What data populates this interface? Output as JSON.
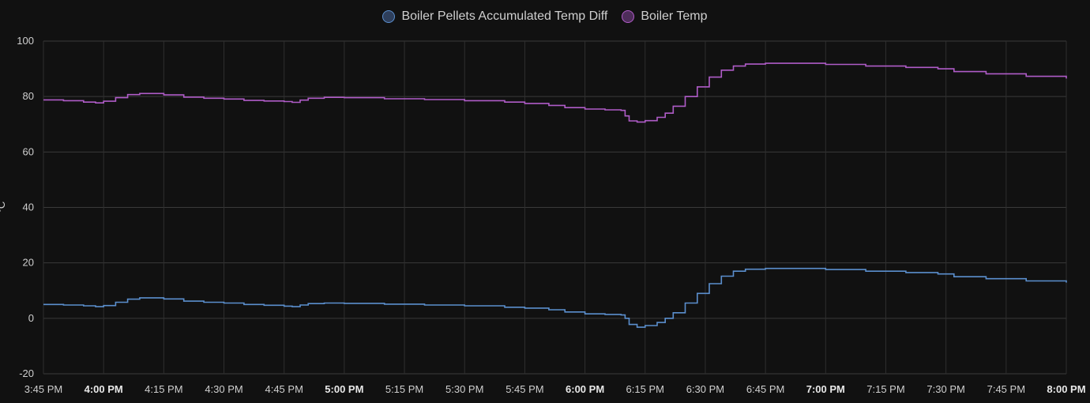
{
  "chart_data": {
    "type": "line",
    "title": "",
    "xlabel": "",
    "ylabel": "°C",
    "ylim": [
      -20,
      100
    ],
    "yticks": [
      -20,
      0,
      20,
      40,
      60,
      80,
      100
    ],
    "xlim": [
      "15:45",
      "20:00"
    ],
    "xticks": [
      {
        "t": "15:45",
        "label": "3:45 PM",
        "major": false
      },
      {
        "t": "16:00",
        "label": "4:00 PM",
        "major": true
      },
      {
        "t": "16:15",
        "label": "4:15 PM",
        "major": false
      },
      {
        "t": "16:30",
        "label": "4:30 PM",
        "major": false
      },
      {
        "t": "16:45",
        "label": "4:45 PM",
        "major": false
      },
      {
        "t": "17:00",
        "label": "5:00 PM",
        "major": true
      },
      {
        "t": "17:15",
        "label": "5:15 PM",
        "major": false
      },
      {
        "t": "17:30",
        "label": "5:30 PM",
        "major": false
      },
      {
        "t": "17:45",
        "label": "5:45 PM",
        "major": false
      },
      {
        "t": "18:00",
        "label": "6:00 PM",
        "major": true
      },
      {
        "t": "18:15",
        "label": "6:15 PM",
        "major": false
      },
      {
        "t": "18:30",
        "label": "6:30 PM",
        "major": false
      },
      {
        "t": "18:45",
        "label": "6:45 PM",
        "major": false
      },
      {
        "t": "19:00",
        "label": "7:00 PM",
        "major": true
      },
      {
        "t": "19:15",
        "label": "7:15 PM",
        "major": false
      },
      {
        "t": "19:30",
        "label": "7:30 PM",
        "major": false
      },
      {
        "t": "19:45",
        "label": "7:45 PM",
        "major": false
      },
      {
        "t": "20:00",
        "label": "8:00 PM",
        "major": true
      }
    ],
    "grid": true,
    "legend_position": "top-center",
    "series": [
      {
        "name": "Boiler Pellets Accumulated Temp Diff",
        "color": "#5b8fce",
        "points": [
          [
            "15:45",
            5.0
          ],
          [
            "15:50",
            4.8
          ],
          [
            "15:55",
            4.5
          ],
          [
            "15:58",
            4.2
          ],
          [
            "16:00",
            4.6
          ],
          [
            "16:03",
            5.8
          ],
          [
            "16:06",
            6.9
          ],
          [
            "16:09",
            7.4
          ],
          [
            "16:12",
            7.4
          ],
          [
            "16:15",
            7.0
          ],
          [
            "16:20",
            6.2
          ],
          [
            "16:25",
            5.8
          ],
          [
            "16:30",
            5.5
          ],
          [
            "16:35",
            5.0
          ],
          [
            "16:40",
            4.7
          ],
          [
            "16:45",
            4.4
          ],
          [
            "16:47",
            4.2
          ],
          [
            "16:49",
            4.8
          ],
          [
            "16:51",
            5.3
          ],
          [
            "16:55",
            5.5
          ],
          [
            "17:00",
            5.4
          ],
          [
            "17:10",
            5.1
          ],
          [
            "17:20",
            4.8
          ],
          [
            "17:30",
            4.5
          ],
          [
            "17:40",
            4.0
          ],
          [
            "17:45",
            3.7
          ],
          [
            "17:51",
            3.1
          ],
          [
            "17:55",
            2.3
          ],
          [
            "18:00",
            1.6
          ],
          [
            "18:05",
            1.4
          ],
          [
            "18:09",
            1.2
          ],
          [
            "18:10",
            0.0
          ],
          [
            "18:11",
            -2.2
          ],
          [
            "18:13",
            -3.2
          ],
          [
            "18:15",
            -2.6
          ],
          [
            "18:18",
            -1.5
          ],
          [
            "18:20",
            0.0
          ],
          [
            "18:22",
            2.0
          ],
          [
            "18:25",
            5.5
          ],
          [
            "18:28",
            9.0
          ],
          [
            "18:31",
            12.5
          ],
          [
            "18:34",
            15.2
          ],
          [
            "18:37",
            17.0
          ],
          [
            "18:40",
            17.7
          ],
          [
            "18:45",
            18.0
          ],
          [
            "18:55",
            18.0
          ],
          [
            "19:00",
            17.6
          ],
          [
            "19:10",
            17.0
          ],
          [
            "19:20",
            16.5
          ],
          [
            "19:28",
            16.0
          ],
          [
            "19:32",
            15.0
          ],
          [
            "19:40",
            14.3
          ],
          [
            "19:50",
            13.5
          ],
          [
            "20:00",
            12.9
          ]
        ]
      },
      {
        "name": "Boiler Temp",
        "color": "#b05cc8",
        "points": [
          [
            "15:45",
            78.8
          ],
          [
            "15:50",
            78.5
          ],
          [
            "15:55",
            78.0
          ],
          [
            "15:58",
            77.7
          ],
          [
            "16:00",
            78.3
          ],
          [
            "16:03",
            79.6
          ],
          [
            "16:06",
            80.7
          ],
          [
            "16:09",
            81.1
          ],
          [
            "16:12",
            81.1
          ],
          [
            "16:15",
            80.6
          ],
          [
            "16:20",
            79.8
          ],
          [
            "16:25",
            79.4
          ],
          [
            "16:30",
            79.1
          ],
          [
            "16:35",
            78.6
          ],
          [
            "16:40",
            78.4
          ],
          [
            "16:45",
            78.2
          ],
          [
            "16:47",
            77.9
          ],
          [
            "16:49",
            78.7
          ],
          [
            "16:51",
            79.4
          ],
          [
            "16:55",
            79.7
          ],
          [
            "17:00",
            79.6
          ],
          [
            "17:10",
            79.2
          ],
          [
            "17:20",
            78.9
          ],
          [
            "17:30",
            78.5
          ],
          [
            "17:40",
            78.0
          ],
          [
            "17:45",
            77.5
          ],
          [
            "17:51",
            76.8
          ],
          [
            "17:55",
            76.0
          ],
          [
            "18:00",
            75.5
          ],
          [
            "18:05",
            75.2
          ],
          [
            "18:09",
            75.0
          ],
          [
            "18:10",
            73.0
          ],
          [
            "18:11",
            71.2
          ],
          [
            "18:13",
            70.8
          ],
          [
            "18:15",
            71.3
          ],
          [
            "18:18",
            72.5
          ],
          [
            "18:20",
            74.0
          ],
          [
            "18:22",
            76.5
          ],
          [
            "18:25",
            80.0
          ],
          [
            "18:28",
            83.5
          ],
          [
            "18:31",
            87.0
          ],
          [
            "18:34",
            89.5
          ],
          [
            "18:37",
            91.0
          ],
          [
            "18:40",
            91.7
          ],
          [
            "18:45",
            92.0
          ],
          [
            "18:55",
            92.0
          ],
          [
            "19:00",
            91.6
          ],
          [
            "19:10",
            91.0
          ],
          [
            "19:20",
            90.5
          ],
          [
            "19:28",
            90.0
          ],
          [
            "19:32",
            89.0
          ],
          [
            "19:40",
            88.2
          ],
          [
            "19:50",
            87.3
          ],
          [
            "20:00",
            86.5
          ]
        ]
      }
    ]
  }
}
